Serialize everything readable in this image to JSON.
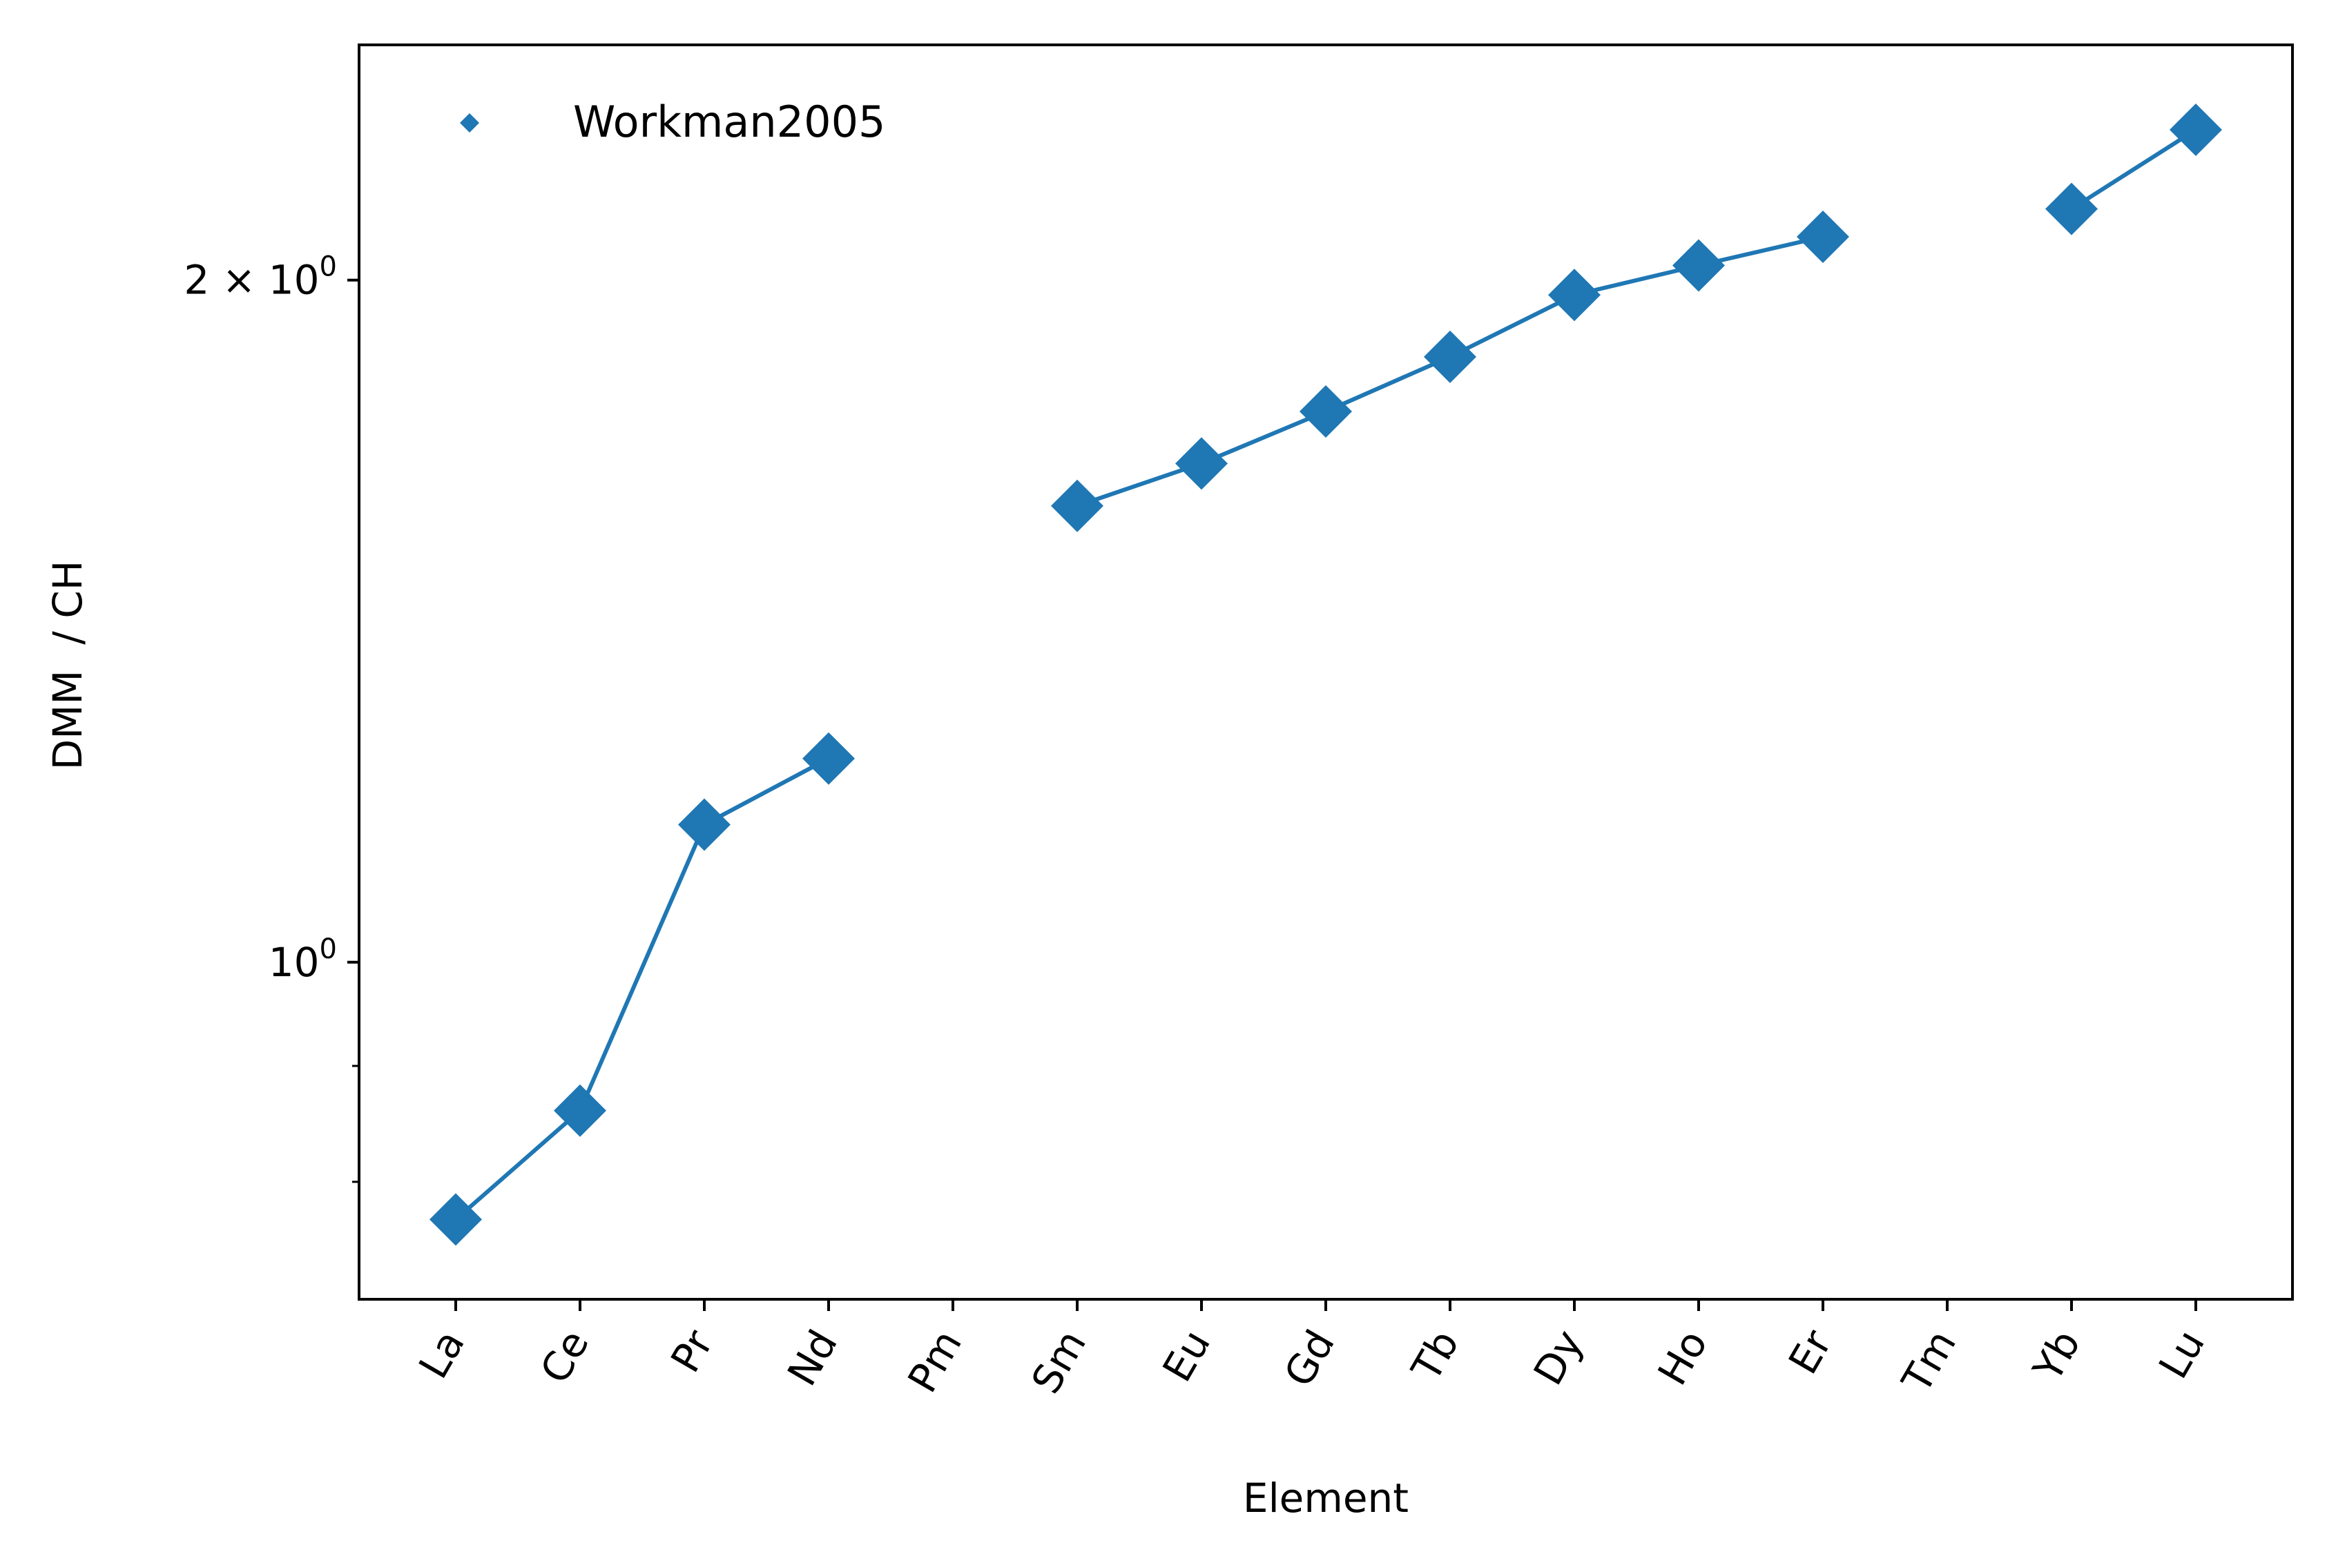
{
  "chart_data": {
    "type": "line",
    "title": "",
    "xlabel": "Element",
    "ylabel": "DMM  / CH",
    "yscale": "log",
    "ylim": [
      0.71,
      2.54
    ],
    "grid": false,
    "legend_position": "top-left",
    "categories": [
      "La",
      "Ce",
      "Pr",
      "Nd",
      "Pm",
      "Sm",
      "Eu",
      "Gd",
      "Tb",
      "Dy",
      "Ho",
      "Er",
      "Tm",
      "Yb",
      "Lu"
    ],
    "y_ticks": [
      {
        "value": 1,
        "label": "10",
        "sup": "0"
      },
      {
        "value": 2,
        "label": "2 × 10",
        "sup": "0"
      }
    ],
    "y_minor_ticks": [
      0.8,
      0.9
    ],
    "series": [
      {
        "name": "Workman2005",
        "color": "#1f77b4",
        "marker": "diamond",
        "values": [
          0.77,
          0.86,
          1.15,
          1.23,
          null,
          1.59,
          1.66,
          1.75,
          1.85,
          1.97,
          2.03,
          2.09,
          null,
          2.15,
          2.33
        ]
      }
    ]
  }
}
